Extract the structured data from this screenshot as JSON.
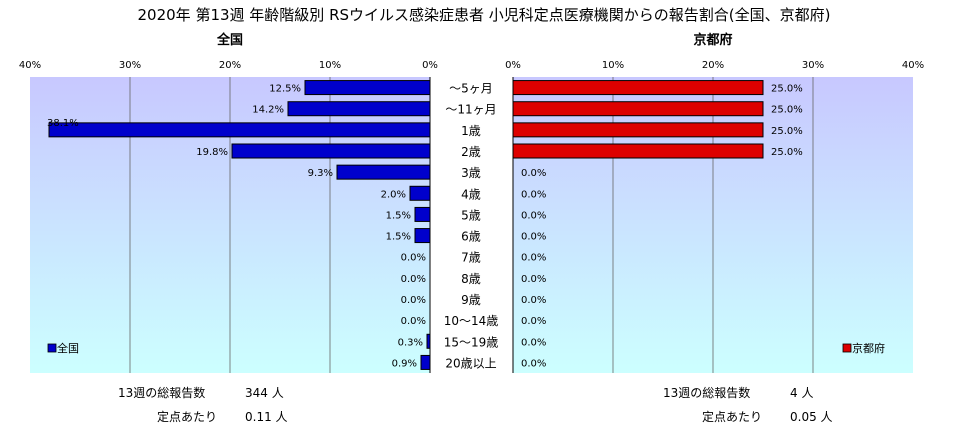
{
  "title": "2020年 第13週 年齢階級別 RSウイルス感染症患者 小児科定点医療機関からの報告割合(全国、京都府)",
  "colors": {
    "national_bar": "#0000cc",
    "kyoto_bar": "#dd0000",
    "plot_bg_top": "#c8c8ff",
    "plot_bg_bottom": "#ccffff"
  },
  "categories": [
    "～5ヶ月",
    "～11ヶ月",
    "1歳",
    "2歳",
    "3歳",
    "4歳",
    "5歳",
    "6歳",
    "7歳",
    "8歳",
    "9歳",
    "10～14歳",
    "15～19歳",
    "20歳以上"
  ],
  "chart_data": [
    {
      "type": "bar",
      "orientation": "horizontal",
      "direction": "right-to-left",
      "title": "全国",
      "categories": [
        "～5ヶ月",
        "～11ヶ月",
        "1歳",
        "2歳",
        "3歳",
        "4歳",
        "5歳",
        "6歳",
        "7歳",
        "8歳",
        "9歳",
        "10～14歳",
        "15～19歳",
        "20歳以上"
      ],
      "series": [
        {
          "name": "全国",
          "values": [
            12.5,
            14.2,
            38.1,
            19.8,
            9.3,
            2.0,
            1.5,
            1.5,
            0.0,
            0.0,
            0.0,
            0.0,
            0.3,
            0.9
          ]
        }
      ],
      "value_labels": [
        "12.5%",
        "14.2%",
        "38.1%",
        "19.8%",
        "9.3%",
        "2.0%",
        "1.5%",
        "1.5%",
        "0.0%",
        "0.0%",
        "0.0%",
        "0.0%",
        "0.3%",
        "0.9%"
      ],
      "xlim": [
        0,
        40
      ],
      "ticks": [
        "40%",
        "30%",
        "20%",
        "10%",
        "0%"
      ],
      "legend": "bottom-left",
      "grid": true
    },
    {
      "type": "bar",
      "orientation": "horizontal",
      "direction": "left-to-right",
      "title": "京都府",
      "categories": [
        "～5ヶ月",
        "～11ヶ月",
        "1歳",
        "2歳",
        "3歳",
        "4歳",
        "5歳",
        "6歳",
        "7歳",
        "8歳",
        "9歳",
        "10～14歳",
        "15～19歳",
        "20歳以上"
      ],
      "series": [
        {
          "name": "京都府",
          "values": [
            25.0,
            25.0,
            25.0,
            25.0,
            0.0,
            0.0,
            0.0,
            0.0,
            0.0,
            0.0,
            0.0,
            0.0,
            0.0,
            0.0
          ]
        }
      ],
      "value_labels": [
        "25.0%",
        "25.0%",
        "25.0%",
        "25.0%",
        "0.0%",
        "0.0%",
        "0.0%",
        "0.0%",
        "0.0%",
        "0.0%",
        "0.0%",
        "0.0%",
        "0.0%",
        "0.0%"
      ],
      "xlim": [
        0,
        40
      ],
      "ticks": [
        "0%",
        "10%",
        "20%",
        "30%",
        "40%"
      ],
      "legend": "bottom-right",
      "grid": true
    }
  ],
  "footer": {
    "national_total_label": "13週の総報告数",
    "national_total_value": "344 人",
    "national_per_label": "定点あたり",
    "national_per_value": "0.11 人",
    "kyoto_total_label": "13週の総報告数",
    "kyoto_total_value": "4 人",
    "kyoto_per_label": "定点あたり",
    "kyoto_per_value": "0.05 人"
  }
}
